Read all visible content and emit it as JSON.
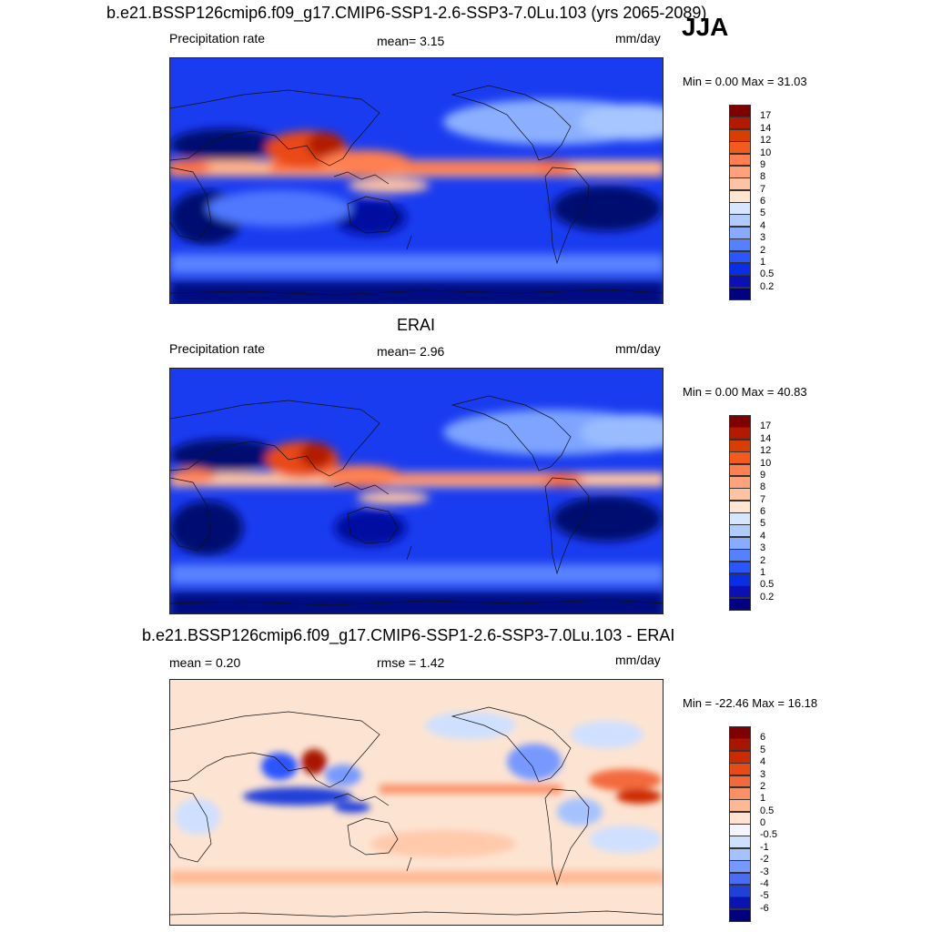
{
  "season": "JJA",
  "panels": [
    {
      "id": "model",
      "title": "b.e21.BSSP126cmip6.f09_g17.CMIP6-SSP1-2.6-SSP3-7.0Lu.103 (yrs 2065-2089)",
      "left_label": "Precipitation rate",
      "center_label": "mean=   3.15",
      "units": "mm/day",
      "minmax": "Min =    0.00 Max =  31.03",
      "colorbar": {
        "levels": [
          "17",
          "14",
          "12",
          "10",
          "9",
          "8",
          "7",
          "6",
          "5",
          "4",
          "3",
          "2",
          "1",
          "0.5",
          "0.2"
        ],
        "colors": [
          "#800000",
          "#b21900",
          "#d93d00",
          "#f25a1e",
          "#ff7f50",
          "#ffa17a",
          "#ffc4a3",
          "#ffe6d2",
          "#d6e6ff",
          "#b0ccff",
          "#88aaff",
          "#5580ff",
          "#2a55ff",
          "#0a2ee6",
          "#0a10b4",
          "#000080"
        ]
      }
    },
    {
      "id": "obs",
      "title": "ERAI",
      "left_label": "Precipitation rate",
      "center_label": "mean=   2.96",
      "units": "mm/day",
      "minmax": "Min =    0.00 Max =  40.83",
      "colorbar": {
        "levels": [
          "17",
          "14",
          "12",
          "10",
          "9",
          "8",
          "7",
          "6",
          "5",
          "4",
          "3",
          "2",
          "1",
          "0.5",
          "0.2"
        ],
        "colors": [
          "#800000",
          "#b21900",
          "#d93d00",
          "#f25a1e",
          "#ff7f50",
          "#ffa17a",
          "#ffc4a3",
          "#ffe6d2",
          "#d6e6ff",
          "#b0ccff",
          "#88aaff",
          "#5580ff",
          "#2a55ff",
          "#0a2ee6",
          "#0a10b4",
          "#000080"
        ]
      }
    },
    {
      "id": "diff",
      "title": "b.e21.BSSP126cmip6.f09_g17.CMIP6-SSP1-2.6-SSP3-7.0Lu.103 - ERAI",
      "left_label": "mean =   0.20",
      "center_label": "rmse =   1.42",
      "units": "mm/day",
      "minmax": "Min = -22.46 Max =  16.18",
      "colorbar": {
        "levels": [
          "6",
          "5",
          "4",
          "3",
          "2",
          "1",
          "0.5",
          "0",
          "-0.5",
          "-1",
          "-2",
          "-3",
          "-4",
          "-5",
          "-6"
        ],
        "colors": [
          "#800000",
          "#a81500",
          "#cc2a00",
          "#e64a19",
          "#f26a3c",
          "#fa9066",
          "#ffb894",
          "#ffe3d0",
          "#f5f5ff",
          "#cfe0ff",
          "#a5c2ff",
          "#7799ff",
          "#4a6cf5",
          "#2040d9",
          "#0a14b0",
          "#000080"
        ]
      }
    }
  ]
}
